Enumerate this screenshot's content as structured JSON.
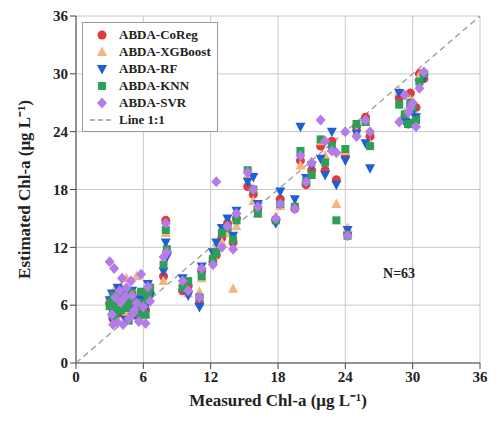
{
  "chart_data": {
    "type": "scatter",
    "x_label": "Measured Chl-a (μg L⁻¹)",
    "y_label": "Estimated Chl-a (μg L⁻¹)",
    "annotation": "N=63",
    "xlim": [
      0,
      36
    ],
    "ylim": [
      0,
      36
    ],
    "xticks": [
      0,
      6,
      12,
      18,
      24,
      30,
      36
    ],
    "yticks": [
      0,
      6,
      12,
      18,
      24,
      30,
      36
    ],
    "grid": true,
    "legend": "upper left",
    "x": [
      3.0,
      3.2,
      3.4,
      3.5,
      3.7,
      3.9,
      4.0,
      4.2,
      4.4,
      4.5,
      4.7,
      4.9,
      5.0,
      5.2,
      5.4,
      5.6,
      5.8,
      6.0,
      6.2,
      6.4,
      6.6,
      3.3,
      4.1,
      5.1,
      7.8,
      8.0,
      8.1,
      9.5,
      10.0,
      11.0,
      11.2,
      12.2,
      12.5,
      13.0,
      13.5,
      14.0,
      14.3,
      15.3,
      15.8,
      16.2,
      17.8,
      18.2,
      19.5,
      20.0,
      20.5,
      21.0,
      21.8,
      22.2,
      22.8,
      23.2,
      24.0,
      24.2,
      25.0,
      25.8,
      26.2,
      28.8,
      29.3,
      29.8,
      30.3,
      30.6,
      31.0,
      29.6,
      30.0
    ],
    "series": [
      {
        "name": "ABDA-CoReg",
        "color": "#e03a3a",
        "marker": "circle",
        "values": [
          6.2,
          5.8,
          6.5,
          5.5,
          6.8,
          5.2,
          6.0,
          7.0,
          5.6,
          6.3,
          5.0,
          6.6,
          7.2,
          5.9,
          6.4,
          4.8,
          6.1,
          7.0,
          5.5,
          6.8,
          7.3,
          4.6,
          6.9,
          5.3,
          9.0,
          14.8,
          11.5,
          7.5,
          8.0,
          6.2,
          9.5,
          10.5,
          11.2,
          13.0,
          14.5,
          12.5,
          15.0,
          18.3,
          17.5,
          16.0,
          14.8,
          17.0,
          16.0,
          21.0,
          18.5,
          20.0,
          22.5,
          20.0,
          23.0,
          19.0,
          21.5,
          13.5,
          24.5,
          25.5,
          23.5,
          27.5,
          25.5,
          28.0,
          26.5,
          30.0,
          29.5,
          24.8,
          26.8
        ]
      },
      {
        "name": "ABDA-XGBoost",
        "color": "#f5b47e",
        "marker": "triangle_up",
        "values": [
          6.8,
          5.4,
          7.5,
          6.1,
          6.0,
          5.8,
          7.9,
          6.3,
          5.0,
          8.8,
          5.6,
          7.0,
          6.5,
          6.4,
          9.0,
          5.3,
          6.9,
          6.4,
          5.1,
          7.6,
          8.2,
          5.0,
          6.1,
          5.9,
          8.5,
          13.5,
          12.0,
          8.3,
          7.2,
          7.4,
          8.8,
          11.2,
          12.0,
          12.5,
          13.5,
          7.7,
          14.2,
          19.5,
          16.8,
          15.5,
          15.2,
          16.3,
          16.5,
          20.5,
          19.0,
          20.8,
          23.0,
          21.5,
          22.3,
          16.5,
          22.0,
          14.0,
          24.0,
          25.0,
          22.8,
          28.2,
          26.0,
          27.3,
          25.8,
          29.8,
          30.2,
          25.2,
          26.3
        ]
      },
      {
        "name": "ABDA-RF",
        "color": "#1f5fd6",
        "marker": "triangle_down",
        "values": [
          6.5,
          7.2,
          6.0,
          5.2,
          7.8,
          5.5,
          6.6,
          7.4,
          4.5,
          6.0,
          5.8,
          6.2,
          7.5,
          5.0,
          6.7,
          4.9,
          7.1,
          6.5,
          5.8,
          8.2,
          6.9,
          4.4,
          7.6,
          5.6,
          9.5,
          12.5,
          11.0,
          8.8,
          7.0,
          5.8,
          10.0,
          11.5,
          12.5,
          14.0,
          15.0,
          13.2,
          15.8,
          18.8,
          19.3,
          16.5,
          14.5,
          17.8,
          17.0,
          24.5,
          19.2,
          20.5,
          21.2,
          19.5,
          24.0,
          18.5,
          21.0,
          13.8,
          23.8,
          22.8,
          20.2,
          28.0,
          25.0,
          26.3,
          25.5,
          29.0,
          29.6,
          24.9,
          26.0
        ]
      },
      {
        "name": "ABDA-KNN",
        "color": "#2ca05a",
        "marker": "square",
        "values": [
          5.9,
          6.3,
          7.0,
          4.8,
          6.4,
          6.9,
          5.5,
          6.8,
          6.2,
          5.7,
          4.4,
          7.3,
          6.6,
          5.4,
          6.0,
          5.2,
          7.4,
          6.2,
          5.0,
          7.0,
          7.8,
          5.5,
          6.5,
          6.3,
          10.2,
          13.8,
          11.8,
          7.8,
          8.5,
          6.8,
          9.0,
          10.8,
          11.5,
          13.5,
          14.0,
          12.8,
          14.8,
          20.0,
          18.0,
          15.5,
          14.8,
          16.5,
          16.2,
          22.0,
          18.8,
          19.5,
          23.2,
          20.8,
          22.5,
          14.8,
          22.2,
          13.2,
          24.8,
          25.0,
          22.5,
          26.8,
          25.8,
          27.0,
          25.2,
          29.2,
          30.0,
          24.8,
          26.5
        ]
      },
      {
        "name": "ABDA-SVR",
        "color": "#b57be8",
        "marker": "diamond",
        "values": [
          10.5,
          5.0,
          9.8,
          6.8,
          4.2,
          7.5,
          6.3,
          4.0,
          6.9,
          7.8,
          4.6,
          8.5,
          7.0,
          5.5,
          6.2,
          4.3,
          9.2,
          5.8,
          4.1,
          7.9,
          6.4,
          4.0,
          8.8,
          5.2,
          11.0,
          14.5,
          11.5,
          8.5,
          7.5,
          6.8,
          9.8,
          10.2,
          18.8,
          12.0,
          14.2,
          11.8,
          15.5,
          19.8,
          18.0,
          16.2,
          15.0,
          16.5,
          16.0,
          21.5,
          18.8,
          20.8,
          25.2,
          23.0,
          22.0,
          21.8,
          24.0,
          13.2,
          23.5,
          25.2,
          24.0,
          25.0,
          27.8,
          26.5,
          24.5,
          28.5,
          30.2,
          26.0,
          27.0
        ]
      },
      {
        "name": "Line 1:1",
        "color": "#999999",
        "type": "line",
        "line_style": "dashed",
        "x": [
          0,
          36
        ],
        "values": [
          0,
          36
        ]
      }
    ]
  }
}
